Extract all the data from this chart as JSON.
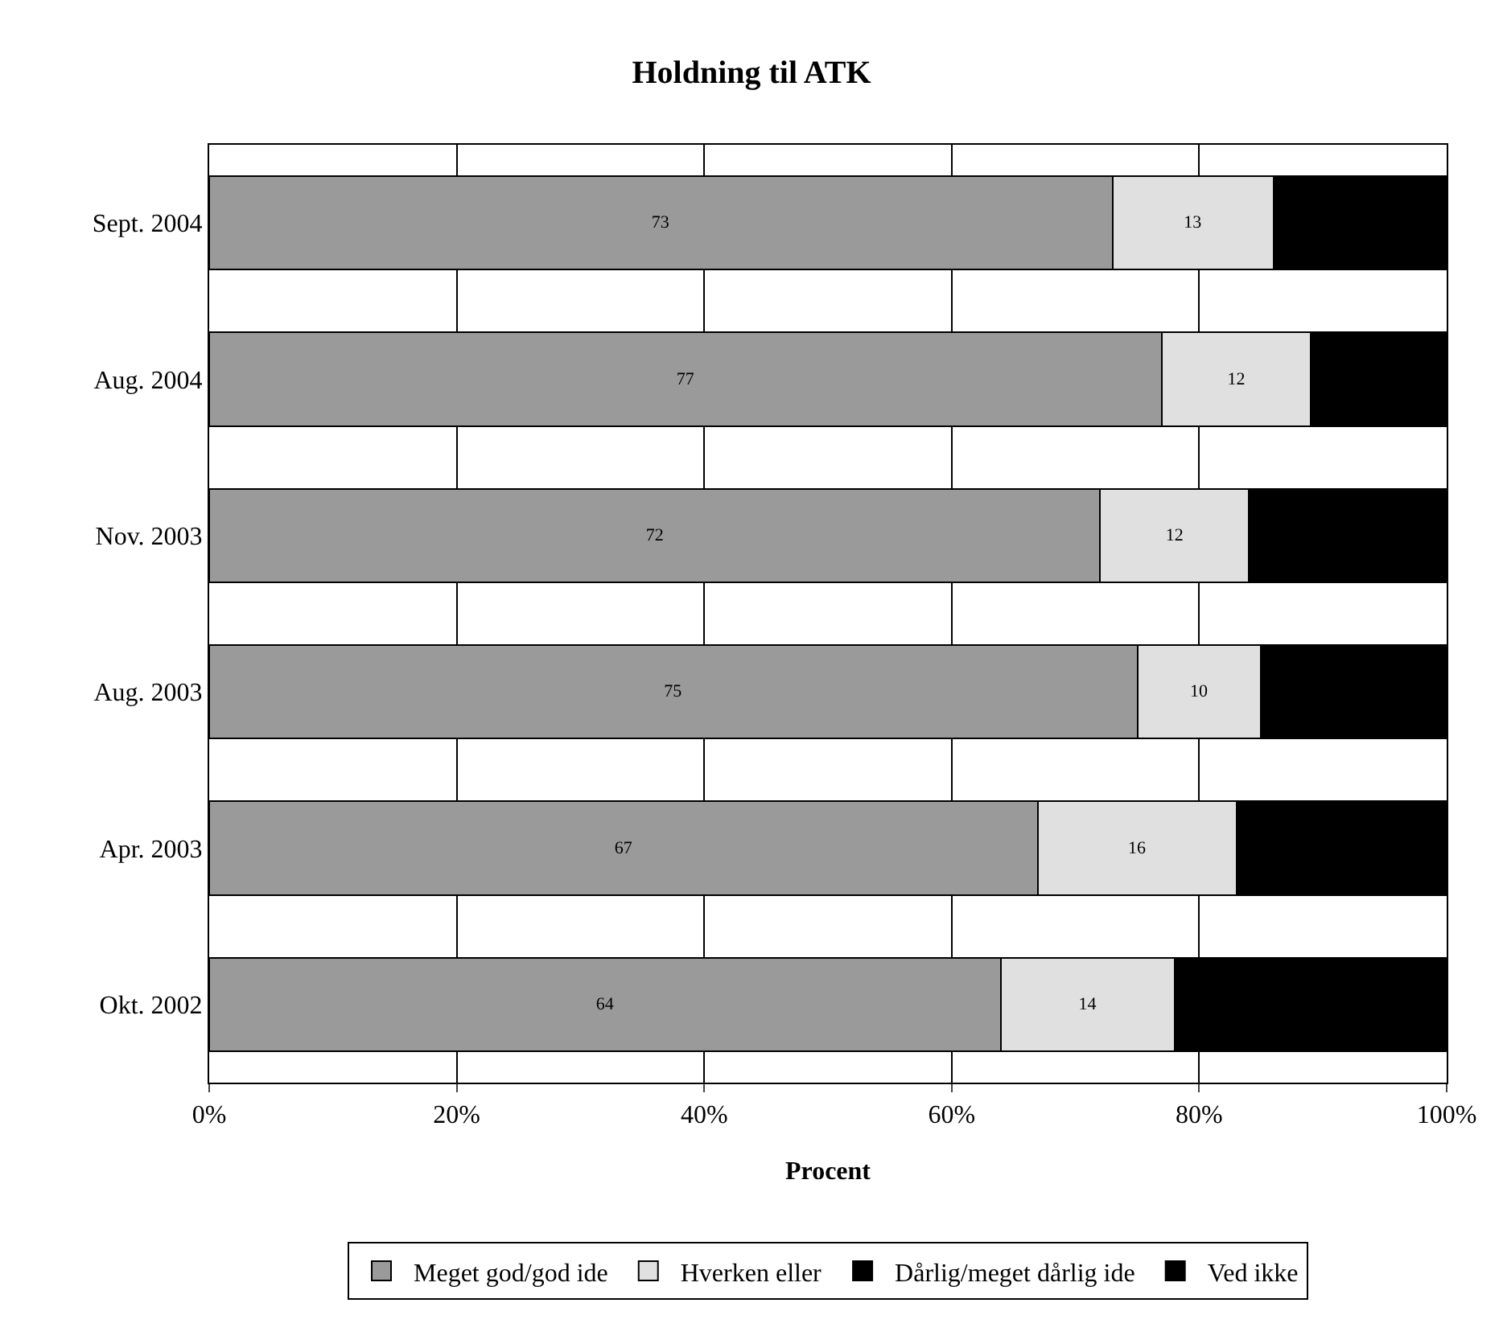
{
  "chart_data": {
    "type": "bar",
    "orientation": "horizontal",
    "stacked": true,
    "title": "Holdning til ATK",
    "xlabel": "Procent",
    "categories": [
      "Sept. 2004",
      "Aug. 2004",
      "Nov. 2003",
      "Aug. 2003",
      "Apr. 2003",
      "Okt. 2002"
    ],
    "series": [
      {
        "name": "Meget god/god ide",
        "color": "#9a9a9a",
        "values": [
          73,
          77,
          72,
          75,
          67,
          64
        ],
        "value_labels": [
          "73",
          "77",
          "72",
          "75",
          "67",
          "64"
        ]
      },
      {
        "name": "Hverken eller",
        "color": "#e0e0e0",
        "values": [
          13,
          12,
          12,
          10,
          16,
          14
        ],
        "value_labels": [
          "13",
          "12",
          "12",
          "10",
          "16",
          "14"
        ]
      },
      {
        "name": "Dårlig/meget dårlig ide",
        "color": "#000000",
        "values": [
          12,
          9,
          13,
          12,
          14,
          18
        ]
      },
      {
        "name": "Ved ikke",
        "color": "#000000",
        "values": [
          2,
          2,
          3,
          3,
          3,
          4
        ]
      }
    ],
    "xlim": [
      0,
      100
    ],
    "xticks": [
      {
        "value": 0,
        "label": "0%"
      },
      {
        "value": 20,
        "label": "20%"
      },
      {
        "value": 40,
        "label": "40%"
      },
      {
        "value": 60,
        "label": "60%"
      },
      {
        "value": 80,
        "label": "80%"
      },
      {
        "value": 100,
        "label": "100%"
      }
    ],
    "grid": "x",
    "legend": "bottom"
  }
}
